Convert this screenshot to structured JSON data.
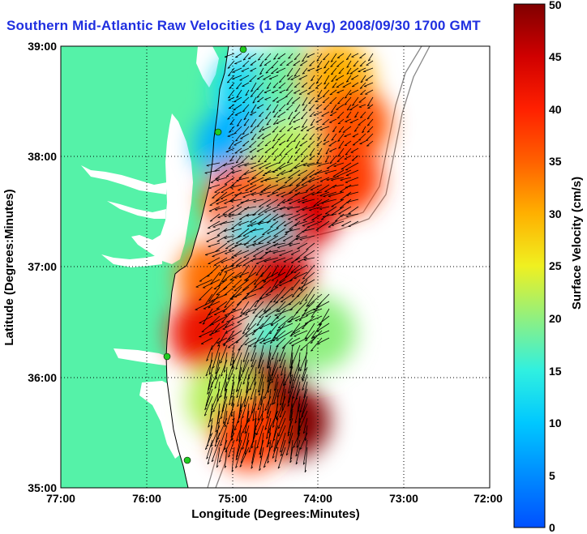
{
  "title": "Southern Mid-Atlantic Raw Velocities (1 Day Avg) 2008/09/30 1700 GMT",
  "xlabel": "Longitude (Degrees:Minutes)",
  "ylabel": "Latitude (Degrees:Minutes)",
  "x_ticks": [
    "77:00",
    "76:00",
    "75:00",
    "74:00",
    "73:00",
    "72:00"
  ],
  "y_ticks": [
    "39:00",
    "38:00",
    "37:00",
    "36:00",
    "35:00"
  ],
  "colorbar": {
    "label": "Surface Velocity (cm/s)",
    "ticks": [
      "0",
      "5",
      "10",
      "15",
      "20",
      "25",
      "30",
      "35",
      "40",
      "45",
      "50"
    ],
    "range": [
      0,
      50
    ]
  },
  "colors": {
    "land": "#55f2a8",
    "title": "#1f2fe0",
    "arrows": "#000000",
    "site_markers": "#22cc22"
  },
  "chart_data": {
    "type": "heatmap",
    "xlim": [
      -77,
      -72
    ],
    "ylim": [
      35,
      39
    ],
    "grid": true,
    "value_name": "Surface Velocity (cm/s)",
    "regions": [
      {
        "lon": -74.8,
        "lat": 38.6,
        "speed": 12
      },
      {
        "lon": -74.3,
        "lat": 38.7,
        "speed": 18
      },
      {
        "lon": -73.8,
        "lat": 38.7,
        "speed": 30
      },
      {
        "lon": -73.6,
        "lat": 38.3,
        "speed": 36
      },
      {
        "lon": -75.0,
        "lat": 38.1,
        "speed": 8
      },
      {
        "lon": -74.4,
        "lat": 38.0,
        "speed": 22
      },
      {
        "lon": -73.7,
        "lat": 37.8,
        "speed": 38
      },
      {
        "lon": -74.9,
        "lat": 37.6,
        "speed": 35
      },
      {
        "lon": -74.2,
        "lat": 37.5,
        "speed": 44
      },
      {
        "lon": -74.7,
        "lat": 37.2,
        "speed": 13
      },
      {
        "lon": -74.5,
        "lat": 36.9,
        "speed": 45
      },
      {
        "lon": -75.2,
        "lat": 36.9,
        "speed": 34
      },
      {
        "lon": -75.3,
        "lat": 36.4,
        "speed": 42
      },
      {
        "lon": -74.4,
        "lat": 36.3,
        "speed": 16
      },
      {
        "lon": -74.0,
        "lat": 36.4,
        "speed": 20
      },
      {
        "lon": -74.6,
        "lat": 35.9,
        "speed": 48
      },
      {
        "lon": -75.1,
        "lat": 35.8,
        "speed": 22
      },
      {
        "lon": -74.3,
        "lat": 35.6,
        "speed": 50
      },
      {
        "lon": -74.8,
        "lat": 35.5,
        "speed": 38
      }
    ]
  }
}
